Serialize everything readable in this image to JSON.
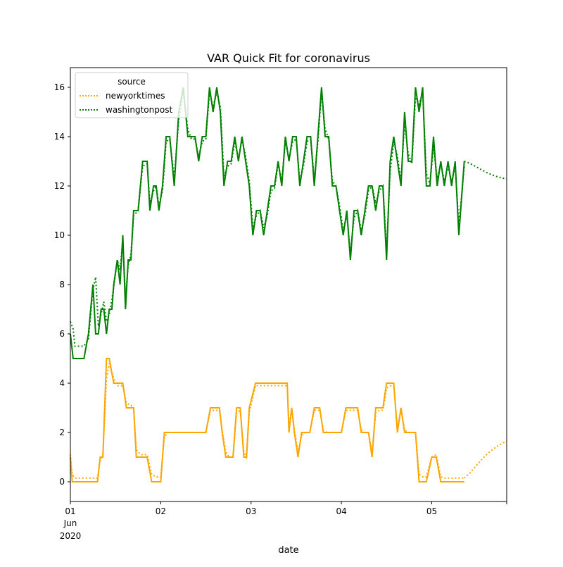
{
  "chart_data": {
    "type": "line",
    "title": "VAR Quick Fit for coronavirus",
    "xlabel": "date",
    "ylabel": "",
    "x_tick_labels": [
      "01",
      "02",
      "03",
      "04",
      "05"
    ],
    "x_tick_values": [
      0,
      1,
      2,
      3,
      4
    ],
    "x_sublabel_month": "Jun",
    "x_sublabel_year": "2020",
    "xlim": [
      0,
      4.83
    ],
    "ylim": [
      -0.8,
      16.8
    ],
    "y_ticks": [
      0,
      2,
      4,
      6,
      8,
      10,
      12,
      14,
      16
    ],
    "grid": false,
    "legend": {
      "title": "source",
      "placement": "top-left"
    },
    "series": [
      {
        "name": "newyorktimes",
        "color": "#ffa500",
        "actual": {
          "x": [
            0.0,
            0.02,
            0.05,
            0.1,
            0.2,
            0.3,
            0.33,
            0.36,
            0.4,
            0.43,
            0.48,
            0.52,
            0.55,
            0.58,
            0.62,
            0.67,
            0.7,
            0.73,
            0.78,
            0.82,
            0.85,
            0.9,
            0.95,
            1.0,
            1.04,
            1.08,
            1.12,
            1.16,
            1.2,
            1.3,
            1.4,
            1.5,
            1.55,
            1.58,
            1.65,
            1.68,
            1.72,
            1.76,
            1.8,
            1.84,
            1.88,
            1.92,
            1.95,
            1.98,
            2.05,
            2.1,
            2.2,
            2.3,
            2.4,
            2.42,
            2.45,
            2.48,
            2.52,
            2.56,
            2.6,
            2.65,
            2.7,
            2.73,
            2.76,
            2.8,
            2.84,
            2.88,
            2.92,
            2.96,
            3.0,
            3.05,
            3.1,
            3.15,
            3.18,
            3.22,
            3.26,
            3.3,
            3.34,
            3.38,
            3.42,
            3.46,
            3.5,
            3.55,
            3.58,
            3.62,
            3.66,
            3.7,
            3.74,
            3.78,
            3.82,
            3.86,
            3.9,
            3.94,
            4.0,
            4.05,
            4.1,
            4.15,
            4.2,
            4.25,
            4.3,
            4.36
          ],
          "y": [
            1,
            0,
            0,
            0,
            0,
            0,
            1,
            1,
            5,
            5,
            4,
            4,
            4,
            4,
            3,
            3,
            3,
            1,
            1,
            1,
            1,
            0,
            0,
            0,
            2,
            2,
            2,
            2,
            2,
            2,
            2,
            2,
            3,
            3,
            3,
            2,
            1,
            1,
            1,
            3,
            3,
            1,
            1,
            3,
            4,
            4,
            4,
            4,
            4,
            2,
            3,
            2,
            1,
            2,
            2,
            2,
            3,
            3,
            3,
            2,
            2,
            2,
            2,
            2,
            2,
            3,
            3,
            3,
            3,
            2,
            2,
            2,
            1,
            3,
            3,
            3,
            4,
            4,
            4,
            2,
            3,
            2,
            2,
            2,
            2,
            0,
            0,
            0,
            1,
            1,
            0,
            0,
            0,
            0,
            0,
            0
          ]
        },
        "fitted": {
          "x": [
            0.0,
            0.02,
            0.05,
            0.1,
            0.2,
            0.3,
            0.33,
            0.36,
            0.4,
            0.43,
            0.48,
            0.52,
            0.55,
            0.58,
            0.62,
            0.67,
            0.7,
            0.73,
            0.78,
            0.82,
            0.85,
            0.9,
            0.95,
            1.0,
            1.04,
            1.08,
            1.12,
            1.16,
            1.2,
            1.3,
            1.4,
            1.5,
            1.55,
            1.58,
            1.65,
            1.68,
            1.72,
            1.76,
            1.8,
            1.84,
            1.88,
            1.92,
            1.95,
            1.98,
            2.05,
            2.1,
            2.2,
            2.3,
            2.4,
            2.42,
            2.45,
            2.48,
            2.52,
            2.56,
            2.6,
            2.65,
            2.7,
            2.73,
            2.76,
            2.8,
            2.84,
            2.88,
            2.92,
            2.96,
            3.0,
            3.05,
            3.1,
            3.15,
            3.18,
            3.22,
            3.26,
            3.3,
            3.34,
            3.38,
            3.42,
            3.46,
            3.5,
            3.55,
            3.58,
            3.62,
            3.66,
            3.7,
            3.74,
            3.78,
            3.82,
            3.86,
            3.9,
            3.94,
            4.0,
            4.05,
            4.1,
            4.15,
            4.2,
            4.25,
            4.3,
            4.36
          ],
          "y": [
            1.1,
            0.3,
            0.15,
            0.15,
            0.15,
            0.15,
            0.9,
            1.1,
            4.2,
            4.8,
            4.2,
            3.9,
            3.9,
            3.9,
            3.2,
            3.1,
            3.0,
            1.3,
            1.1,
            1.1,
            1.1,
            0.3,
            0.2,
            0.2,
            1.8,
            2.0,
            2.0,
            2.0,
            2.0,
            2.0,
            2.0,
            2.0,
            2.9,
            2.9,
            2.9,
            2.1,
            1.2,
            1.0,
            1.0,
            2.8,
            2.9,
            1.2,
            1.0,
            2.8,
            3.9,
            3.9,
            3.9,
            3.9,
            3.9,
            2.2,
            3.0,
            2.1,
            1.2,
            1.9,
            2.0,
            2.0,
            2.9,
            2.9,
            2.9,
            2.1,
            2.0,
            2.0,
            2.0,
            2.0,
            2.0,
            2.9,
            2.9,
            2.9,
            2.9,
            2.1,
            2.0,
            2.0,
            1.2,
            2.8,
            2.9,
            2.9,
            3.8,
            3.9,
            3.9,
            2.2,
            2.9,
            2.1,
            2.0,
            2.0,
            2.0,
            0.3,
            0.2,
            0.2,
            1.0,
            1.1,
            0.2,
            0.15,
            0.15,
            0.15,
            0.15,
            0.15
          ]
        },
        "forecast": {
          "x": [
            4.36,
            4.42,
            4.48,
            4.54,
            4.6,
            4.66,
            4.72,
            4.78,
            4.83
          ],
          "y": [
            0.15,
            0.35,
            0.6,
            0.85,
            1.08,
            1.27,
            1.43,
            1.56,
            1.65
          ]
        }
      },
      {
        "name": "washingtonpost",
        "color": "#008000",
        "actual": {
          "x": [
            0.0,
            0.03,
            0.05,
            0.1,
            0.15,
            0.2,
            0.25,
            0.28,
            0.31,
            0.34,
            0.37,
            0.4,
            0.43,
            0.46,
            0.48,
            0.52,
            0.55,
            0.58,
            0.61,
            0.64,
            0.67,
            0.7,
            0.75,
            0.8,
            0.85,
            0.88,
            0.92,
            0.95,
            0.98,
            1.02,
            1.06,
            1.1,
            1.15,
            1.2,
            1.25,
            1.3,
            1.34,
            1.38,
            1.42,
            1.46,
            1.5,
            1.54,
            1.58,
            1.62,
            1.66,
            1.7,
            1.74,
            1.78,
            1.82,
            1.86,
            1.9,
            1.94,
            1.98,
            2.02,
            2.06,
            2.1,
            2.14,
            2.18,
            2.22,
            2.26,
            2.3,
            2.34,
            2.38,
            2.42,
            2.46,
            2.5,
            2.54,
            2.58,
            2.62,
            2.66,
            2.7,
            2.74,
            2.78,
            2.82,
            2.86,
            2.9,
            2.94,
            2.98,
            3.02,
            3.06,
            3.1,
            3.14,
            3.18,
            3.22,
            3.26,
            3.3,
            3.34,
            3.38,
            3.42,
            3.46,
            3.5,
            3.54,
            3.58,
            3.62,
            3.66,
            3.7,
            3.74,
            3.78,
            3.82,
            3.86,
            3.9,
            3.94,
            3.98,
            4.02,
            4.06,
            4.1,
            4.14,
            4.18,
            4.22,
            4.26,
            4.3,
            4.36
          ],
          "y": [
            6,
            5,
            5,
            5,
            5,
            6,
            8,
            6,
            6,
            7,
            7,
            6,
            7,
            7,
            8,
            9,
            8,
            10,
            7,
            9,
            9,
            11,
            11,
            13,
            13,
            11,
            12,
            12,
            11,
            12,
            14,
            14,
            12,
            15,
            16,
            14,
            14,
            14,
            13,
            14,
            14,
            16,
            15,
            16,
            15,
            12,
            13,
            13,
            14,
            13,
            14,
            13,
            12,
            10,
            11,
            11,
            10,
            11,
            12,
            12,
            13,
            12,
            14,
            13,
            14,
            14,
            12,
            13,
            14,
            14,
            12,
            14,
            16,
            14,
            14,
            12,
            12,
            11,
            10,
            11,
            9,
            11,
            11,
            10,
            11,
            12,
            12,
            11,
            12,
            12,
            9,
            13,
            14,
            13,
            12,
            15,
            13,
            13,
            16,
            15,
            16,
            12,
            12,
            14,
            12,
            13,
            12,
            13,
            12,
            13,
            10,
            13
          ]
        },
        "fitted": {
          "x": [
            0.0,
            0.03,
            0.05,
            0.1,
            0.15,
            0.2,
            0.25,
            0.28,
            0.31,
            0.34,
            0.37,
            0.4,
            0.43,
            0.46,
            0.48,
            0.52,
            0.55,
            0.58,
            0.61,
            0.64,
            0.67,
            0.7,
            0.75,
            0.8,
            0.85,
            0.88,
            0.92,
            0.95,
            0.98,
            1.02,
            1.06,
            1.1,
            1.15,
            1.2,
            1.25,
            1.3,
            1.34,
            1.38,
            1.42,
            1.46,
            1.5,
            1.54,
            1.58,
            1.62,
            1.66,
            1.7,
            1.74,
            1.78,
            1.82,
            1.86,
            1.9,
            1.94,
            1.98,
            2.02,
            2.06,
            2.1,
            2.14,
            2.18,
            2.22,
            2.26,
            2.3,
            2.34,
            2.38,
            2.42,
            2.46,
            2.5,
            2.54,
            2.58,
            2.62,
            2.66,
            2.7,
            2.74,
            2.78,
            2.82,
            2.86,
            2.9,
            2.94,
            2.98,
            3.02,
            3.06,
            3.1,
            3.14,
            3.18,
            3.22,
            3.26,
            3.3,
            3.34,
            3.38,
            3.42,
            3.46,
            3.5,
            3.54,
            3.58,
            3.62,
            3.66,
            3.7,
            3.74,
            3.78,
            3.82,
            3.86,
            3.9,
            3.94,
            3.98,
            4.02,
            4.06,
            4.1,
            4.14,
            4.18,
            4.22,
            4.26,
            4.3,
            4.36
          ],
          "y": [
            6.5,
            6.2,
            5.5,
            5.5,
            5.5,
            5.8,
            7.8,
            8.3,
            6.3,
            6.8,
            7.3,
            6.5,
            6.8,
            7.4,
            7.9,
            9.0,
            8.6,
            9.8,
            7.5,
            8.8,
            9.2,
            10.8,
            11.0,
            12.8,
            12.9,
            11.3,
            11.8,
            12.0,
            11.2,
            11.8,
            13.8,
            13.9,
            12.3,
            14.7,
            15.8,
            14.3,
            13.9,
            13.9,
            13.2,
            13.8,
            13.9,
            15.8,
            15.2,
            15.8,
            15.2,
            12.4,
            12.8,
            12.9,
            13.8,
            13.1,
            13.9,
            13.2,
            12.2,
            10.3,
            10.8,
            11.0,
            10.3,
            10.8,
            11.8,
            11.9,
            12.9,
            12.2,
            13.8,
            13.1,
            13.8,
            13.9,
            12.2,
            12.8,
            13.8,
            13.9,
            12.3,
            13.8,
            15.8,
            14.3,
            13.9,
            12.2,
            12.0,
            11.2,
            10.2,
            10.8,
            9.3,
            10.7,
            11.0,
            10.2,
            10.8,
            11.8,
            12.0,
            11.3,
            11.8,
            12.0,
            9.4,
            12.6,
            13.8,
            13.2,
            12.2,
            14.6,
            13.3,
            12.9,
            15.6,
            15.3,
            15.8,
            12.5,
            12.1,
            13.6,
            12.3,
            12.9,
            12.2,
            12.8,
            12.2,
            12.8,
            10.4,
            12.8
          ]
        },
        "forecast": {
          "x": [
            4.36,
            4.42,
            4.48,
            4.54,
            4.6,
            4.66,
            4.72,
            4.78,
            4.83
          ],
          "y": [
            13.0,
            12.92,
            12.8,
            12.68,
            12.56,
            12.46,
            12.38,
            12.32,
            12.28
          ]
        }
      }
    ]
  }
}
